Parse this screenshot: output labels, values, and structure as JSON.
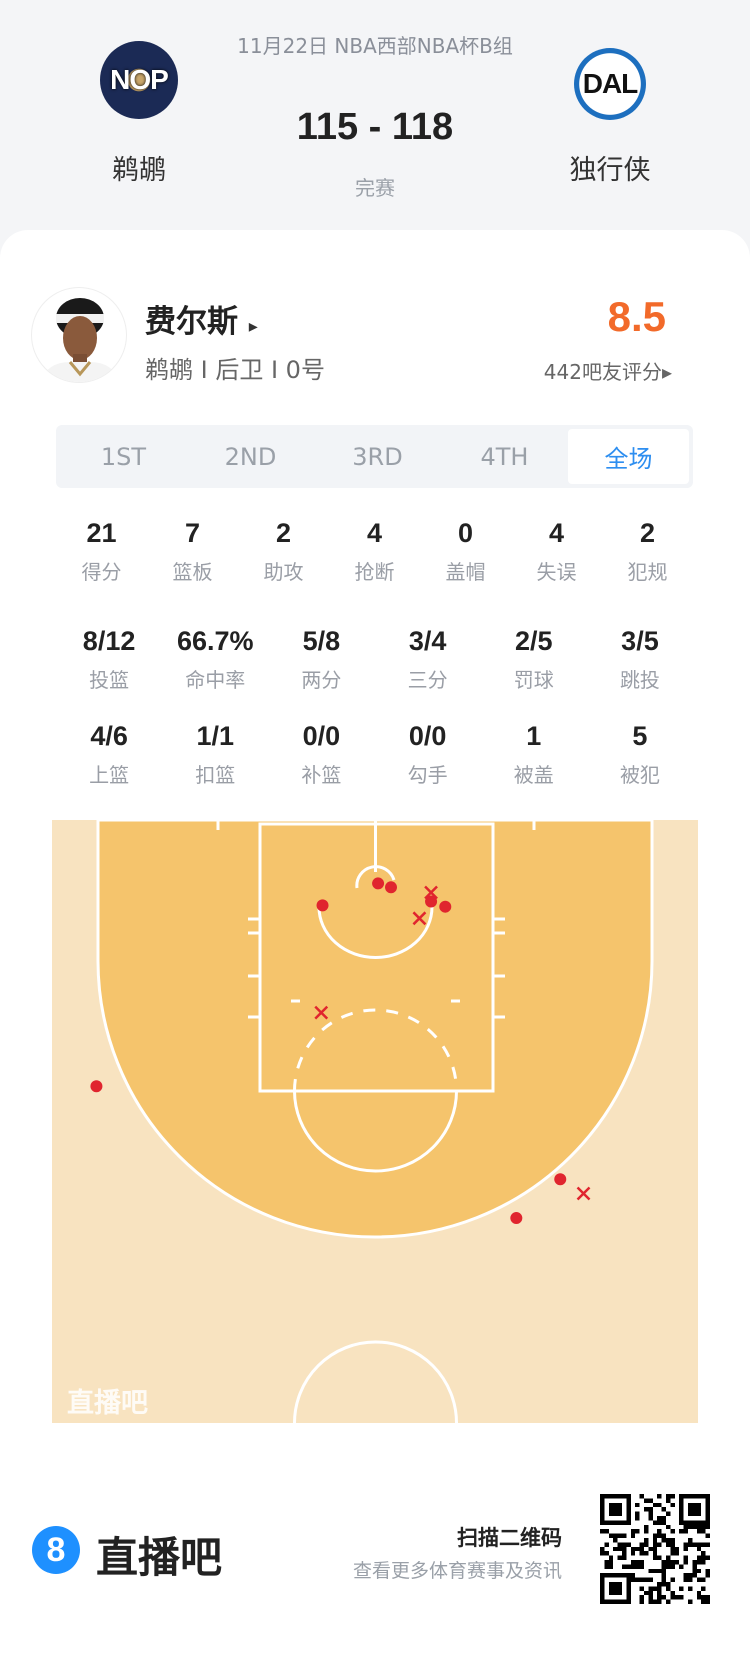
{
  "match": {
    "date_title": "11月22日 NBA西部NBA杯B组",
    "home": {
      "abbr": "NOP",
      "name": "鹈鹕"
    },
    "away": {
      "abbr": "DAL",
      "name": "独行侠"
    },
    "score": "115 - 118",
    "status": "完赛"
  },
  "player": {
    "name": "费尔斯",
    "arrow": "▸",
    "info": "鹈鹕 I 后卫 I 0号",
    "rating": "8.5",
    "rating_label": "442吧友评分▸"
  },
  "tabs": [
    {
      "label": "1ST",
      "active": false
    },
    {
      "label": "2ND",
      "active": false
    },
    {
      "label": "3RD",
      "active": false
    },
    {
      "label": "4TH",
      "active": false
    },
    {
      "label": "全场",
      "active": true
    }
  ],
  "stats": [
    [
      {
        "v": "21",
        "l": "得分"
      },
      {
        "v": "7",
        "l": "篮板"
      },
      {
        "v": "2",
        "l": "助攻"
      },
      {
        "v": "4",
        "l": "抢断"
      },
      {
        "v": "0",
        "l": "盖帽"
      },
      {
        "v": "4",
        "l": "失误"
      },
      {
        "v": "2",
        "l": "犯规"
      }
    ],
    [
      {
        "v": "8/12",
        "l": "投篮"
      },
      {
        "v": "66.7%",
        "l": "命中率"
      },
      {
        "v": "5/8",
        "l": "两分"
      },
      {
        "v": "3/4",
        "l": "三分"
      },
      {
        "v": "2/5",
        "l": "罚球"
      },
      {
        "v": "3/5",
        "l": "跳投"
      }
    ],
    [
      {
        "v": "4/6",
        "l": "上篮"
      },
      {
        "v": "1/1",
        "l": "扣篮"
      },
      {
        "v": "0/0",
        "l": "补篮"
      },
      {
        "v": "0/0",
        "l": "勾手"
      },
      {
        "v": "1",
        "l": "被盖"
      },
      {
        "v": "5",
        "l": "被犯"
      }
    ]
  ],
  "shot_chart": {
    "units": "feet (x from center line of court, y from baseline)",
    "watermark": "直播吧",
    "colors": {
      "paint": "#f5c46c",
      "outer": "#f8e3c0",
      "lines": "#ffffff",
      "shot": "#e0252e"
    },
    "shots": [
      {
        "x": 0.2,
        "y": 4.6,
        "result": "made"
      },
      {
        "x": 1.2,
        "y": 4.9,
        "result": "made"
      },
      {
        "x": -4.1,
        "y": 6.3,
        "result": "made"
      },
      {
        "x": 4.3,
        "y": 6.0,
        "result": "made"
      },
      {
        "x": 5.4,
        "y": 6.4,
        "result": "made"
      },
      {
        "x": -21.6,
        "y": 20.3,
        "result": "made"
      },
      {
        "x": 14.3,
        "y": 27.5,
        "result": "made"
      },
      {
        "x": 10.9,
        "y": 30.5,
        "result": "made"
      },
      {
        "x": 4.3,
        "y": 5.3,
        "result": "missed"
      },
      {
        "x": 3.4,
        "y": 7.3,
        "result": "missed"
      },
      {
        "x": -4.2,
        "y": 14.6,
        "result": "missed"
      },
      {
        "x": 16.1,
        "y": 28.6,
        "result": "missed"
      }
    ]
  },
  "footer": {
    "logo_mark": "8",
    "brand": "直播吧",
    "scan": "扫描二维码",
    "more": "查看更多体育赛事及资讯"
  },
  "accent": {
    "rating": "#f26a2a",
    "tab_active": "#2d8ef0",
    "brand": "#1e90ff"
  }
}
